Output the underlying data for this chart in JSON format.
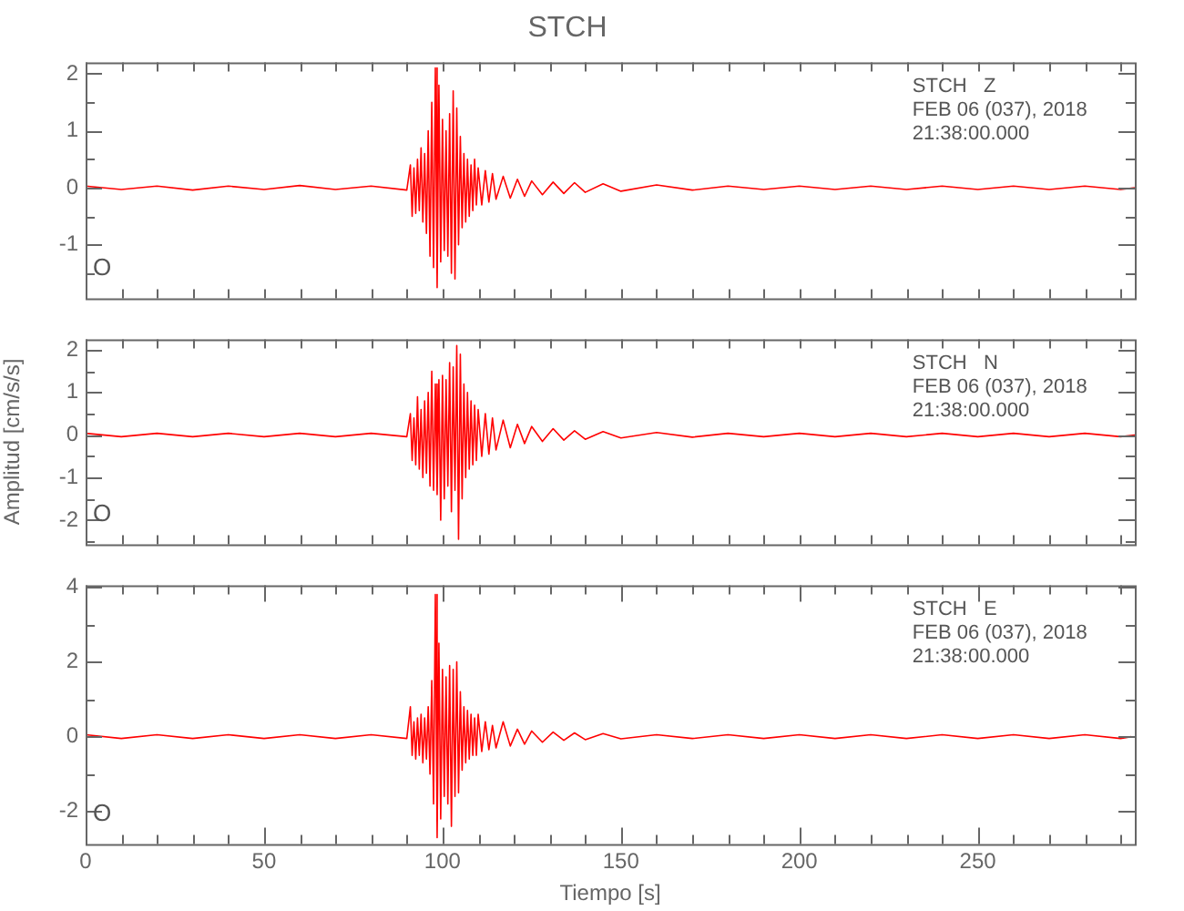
{
  "chart_data": [
    {
      "type": "line",
      "title": "STCH",
      "marker": "none",
      "grid": false,
      "tick_labels": "y",
      "x": [
        0,
        10,
        20,
        30,
        40,
        50,
        60,
        70,
        80,
        90,
        91,
        91.5,
        92,
        92.5,
        93,
        93.5,
        94,
        94.5,
        95,
        95.5,
        96,
        96.5,
        97,
        97.5,
        98,
        98.5,
        99,
        99.5,
        100,
        100.5,
        101,
        101.5,
        102,
        102.5,
        103,
        103.5,
        104,
        104.5,
        105,
        105.5,
        106,
        106.5,
        107,
        107.5,
        108,
        108.5,
        109,
        109.5,
        110,
        111,
        112,
        113,
        114,
        115,
        117,
        119,
        121,
        123,
        125,
        128,
        131,
        134,
        137,
        140,
        145,
        150,
        160,
        170,
        180,
        190,
        200,
        210,
        220,
        230,
        240,
        250,
        260,
        270,
        280,
        290,
        294
      ],
      "series": [
        {
          "color": "#ff0000",
          "values": [
            0.03,
            -0.03,
            0.03,
            -0.04,
            0.03,
            -0.03,
            0.04,
            -0.03,
            0.03,
            -0.04,
            0.4,
            -0.5,
            0.35,
            -0.45,
            0.5,
            -0.4,
            0.7,
            -0.6,
            0.6,
            -0.8,
            1.0,
            -1.2,
            1.5,
            -1.4,
            2.1,
            -1.75,
            1.8,
            -1.3,
            1.2,
            -1.1,
            1.0,
            -1.2,
            1.3,
            -1.5,
            1.7,
            -1.6,
            1.4,
            -1.0,
            0.9,
            -0.7,
            0.6,
            -0.6,
            0.5,
            -0.5,
            0.4,
            -0.4,
            0.5,
            -0.3,
            0.35,
            -0.3,
            0.3,
            -0.25,
            0.25,
            -0.2,
            0.2,
            -0.18,
            0.15,
            -0.15,
            0.12,
            -0.12,
            0.1,
            -0.1,
            0.09,
            -0.08,
            0.07,
            -0.06,
            0.05,
            -0.04,
            0.03,
            -0.03,
            0.03,
            -0.03,
            0.03,
            -0.03,
            0.03,
            -0.03,
            0.03,
            -0.03,
            0.03,
            -0.03,
            0
          ]
        }
      ],
      "xlim": [
        0,
        294
      ],
      "xticks": [
        {
          "value": 0,
          "label": null
        },
        {
          "value": 10,
          "label": null
        },
        {
          "value": 20,
          "label": null
        },
        {
          "value": 30,
          "label": null
        },
        {
          "value": 40,
          "label": null
        },
        {
          "value": 50,
          "label": null
        },
        {
          "value": 60,
          "label": null
        },
        {
          "value": 70,
          "label": null
        },
        {
          "value": 80,
          "label": null
        },
        {
          "value": 90,
          "label": null
        },
        {
          "value": 100,
          "label": null
        },
        {
          "value": 110,
          "label": null
        },
        {
          "value": 120,
          "label": null
        },
        {
          "value": 130,
          "label": null
        },
        {
          "value": 140,
          "label": null
        },
        {
          "value": 150,
          "label": null
        },
        {
          "value": 160,
          "label": null
        },
        {
          "value": 170,
          "label": null
        },
        {
          "value": 180,
          "label": null
        },
        {
          "value": 190,
          "label": null
        },
        {
          "value": 200,
          "label": null
        },
        {
          "value": 210,
          "label": null
        },
        {
          "value": 220,
          "label": null
        },
        {
          "value": 230,
          "label": null
        },
        {
          "value": 240,
          "label": null
        },
        {
          "value": 250,
          "label": null
        },
        {
          "value": 260,
          "label": null
        },
        {
          "value": 270,
          "label": null
        },
        {
          "value": 280,
          "label": null
        },
        {
          "value": 290,
          "label": null
        }
      ],
      "ylim": [
        -1.94,
        2.2
      ],
      "yticks": [
        {
          "value": -1.5,
          "label": null
        },
        -1,
        {
          "value": -0.5,
          "label": null
        },
        0,
        {
          "value": 0.5,
          "label": null
        },
        1,
        {
          "value": 1.5,
          "label": null
        },
        2
      ],
      "annotations": [
        "STCH   Z",
        "FEB 06 (037), 2018",
        "21:38:00.000",
        "O"
      ]
    },
    {
      "type": "line",
      "ylabel": "Amplitud [cm/s/s]",
      "marker": "none",
      "grid": false,
      "tick_labels": "y",
      "x": [
        0,
        10,
        20,
        30,
        40,
        50,
        60,
        70,
        80,
        90,
        91,
        91.5,
        92,
        92.5,
        93,
        93.5,
        94,
        94.5,
        95,
        95.5,
        96,
        96.5,
        97,
        97.5,
        98,
        98.5,
        99,
        99.5,
        100,
        100.5,
        101,
        101.5,
        102,
        102.5,
        103,
        103.5,
        104,
        104.5,
        105,
        105.5,
        106,
        106.5,
        107,
        107.5,
        108,
        108.5,
        109,
        109.5,
        110,
        111,
        112,
        113,
        114,
        115,
        117,
        119,
        121,
        123,
        125,
        128,
        131,
        134,
        137,
        140,
        145,
        150,
        160,
        170,
        180,
        190,
        200,
        210,
        220,
        230,
        240,
        250,
        260,
        270,
        280,
        290,
        294
      ],
      "series": [
        {
          "color": "#ff0000",
          "values": [
            0.04,
            -0.04,
            0.04,
            -0.04,
            0.04,
            -0.04,
            0.04,
            -0.04,
            0.04,
            -0.04,
            0.5,
            -0.6,
            0.4,
            -0.7,
            0.9,
            -0.8,
            0.6,
            -1.0,
            0.8,
            -0.9,
            1.0,
            -1.2,
            1.5,
            -1.3,
            1.2,
            -1.4,
            1.3,
            -2.0,
            1.4,
            -1.5,
            1.3,
            -1.2,
            1.7,
            -1.8,
            1.6,
            -1.3,
            2.1,
            -2.45,
            1.9,
            -1.5,
            1.2,
            -1.0,
            1.0,
            -0.8,
            0.8,
            -0.7,
            0.7,
            -0.6,
            0.6,
            -0.5,
            0.5,
            -0.45,
            0.4,
            -0.35,
            0.35,
            -0.3,
            0.25,
            -0.2,
            0.2,
            -0.15,
            0.15,
            -0.12,
            0.1,
            -0.1,
            0.08,
            -0.07,
            0.06,
            -0.05,
            0.04,
            -0.04,
            0.04,
            -0.04,
            0.04,
            -0.04,
            0.04,
            -0.04,
            0.04,
            -0.04,
            0.04,
            -0.04,
            0
          ]
        }
      ],
      "xlim": [
        0,
        294
      ],
      "xticks": [
        {
          "value": 0,
          "label": null
        },
        {
          "value": 10,
          "label": null
        },
        {
          "value": 20,
          "label": null
        },
        {
          "value": 30,
          "label": null
        },
        {
          "value": 40,
          "label": null
        },
        {
          "value": 50,
          "label": null
        },
        {
          "value": 60,
          "label": null
        },
        {
          "value": 70,
          "label": null
        },
        {
          "value": 80,
          "label": null
        },
        {
          "value": 90,
          "label": null
        },
        {
          "value": 100,
          "label": null
        },
        {
          "value": 110,
          "label": null
        },
        {
          "value": 120,
          "label": null
        },
        {
          "value": 130,
          "label": null
        },
        {
          "value": 140,
          "label": null
        },
        {
          "value": 150,
          "label": null
        },
        {
          "value": 160,
          "label": null
        },
        {
          "value": 170,
          "label": null
        },
        {
          "value": 180,
          "label": null
        },
        {
          "value": 190,
          "label": null
        },
        {
          "value": 200,
          "label": null
        },
        {
          "value": 210,
          "label": null
        },
        {
          "value": 220,
          "label": null
        },
        {
          "value": 230,
          "label": null
        },
        {
          "value": 240,
          "label": null
        },
        {
          "value": 250,
          "label": null
        },
        {
          "value": 260,
          "label": null
        },
        {
          "value": 270,
          "label": null
        },
        {
          "value": 280,
          "label": null
        },
        {
          "value": 290,
          "label": null
        }
      ],
      "ylim": [
        -2.57,
        2.25
      ],
      "yticks": [
        {
          "value": -2.5,
          "label": null
        },
        -2,
        {
          "value": -1.5,
          "label": null
        },
        -1,
        {
          "value": -0.5,
          "label": null
        },
        0,
        {
          "value": 0.5,
          "label": null
        },
        1,
        {
          "value": 1.5,
          "label": null
        },
        2
      ],
      "annotations": [
        "STCH   N",
        "FEB 06 (037), 2018",
        "21:38:00.000",
        "O"
      ]
    },
    {
      "type": "line",
      "xlabel": "Tiempo [s]",
      "marker": "none",
      "grid": false,
      "x": [
        0,
        10,
        20,
        30,
        40,
        50,
        60,
        70,
        80,
        90,
        91,
        91.5,
        92,
        92.5,
        93,
        93.5,
        94,
        94.5,
        95,
        95.5,
        96,
        96.5,
        97,
        97.5,
        98,
        98.5,
        99,
        99.5,
        100,
        100.5,
        101,
        101.5,
        102,
        102.5,
        103,
        103.5,
        104,
        104.5,
        105,
        105.5,
        106,
        106.5,
        107,
        107.5,
        108,
        108.5,
        109,
        109.5,
        110,
        111,
        112,
        113,
        114,
        115,
        117,
        119,
        121,
        123,
        125,
        128,
        131,
        134,
        137,
        140,
        145,
        150,
        160,
        170,
        180,
        190,
        200,
        210,
        220,
        230,
        240,
        250,
        260,
        270,
        280,
        290,
        293
      ],
      "series": [
        {
          "color": "#ff0000",
          "values": [
            0.05,
            -0.05,
            0.05,
            -0.05,
            0.05,
            -0.05,
            0.05,
            -0.05,
            0.05,
            -0.05,
            0.8,
            -0.5,
            0.4,
            -0.6,
            0.5,
            -0.5,
            0.6,
            -0.7,
            0.5,
            -0.6,
            0.8,
            -1.0,
            1.5,
            -1.8,
            3.8,
            -2.7,
            2.5,
            -2.2,
            1.8,
            -1.6,
            1.6,
            -1.8,
            1.9,
            -2.4,
            1.8,
            -1.6,
            2.0,
            -1.5,
            1.2,
            -0.9,
            0.8,
            -0.7,
            0.7,
            -0.6,
            0.6,
            -0.5,
            0.5,
            -0.5,
            0.6,
            -0.4,
            0.4,
            -0.35,
            0.3,
            -0.3,
            0.4,
            -0.25,
            0.2,
            -0.2,
            0.15,
            -0.15,
            0.12,
            -0.1,
            0.1,
            -0.08,
            0.08,
            -0.06,
            0.05,
            -0.05,
            0.05,
            -0.05,
            0.05,
            -0.05,
            0.05,
            -0.05,
            0.05,
            -0.05,
            0.05,
            -0.05,
            0.05,
            -0.05,
            0
          ]
        }
      ],
      "xlim": [
        0,
        294
      ],
      "xticks": [
        0,
        {
          "value": 10,
          "label": null
        },
        {
          "value": 20,
          "label": null
        },
        {
          "value": 30,
          "label": null
        },
        {
          "value": 40,
          "label": null
        },
        50,
        {
          "value": 60,
          "label": null
        },
        {
          "value": 70,
          "label": null
        },
        {
          "value": 80,
          "label": null
        },
        {
          "value": 90,
          "label": null
        },
        100,
        {
          "value": 110,
          "label": null
        },
        {
          "value": 120,
          "label": null
        },
        {
          "value": 130,
          "label": null
        },
        {
          "value": 140,
          "label": null
        },
        150,
        {
          "value": 160,
          "label": null
        },
        {
          "value": 170,
          "label": null
        },
        {
          "value": 180,
          "label": null
        },
        {
          "value": 190,
          "label": null
        },
        200,
        {
          "value": 210,
          "label": null
        },
        {
          "value": 220,
          "label": null
        },
        {
          "value": 230,
          "label": null
        },
        {
          "value": 240,
          "label": null
        },
        250,
        {
          "value": 260,
          "label": null
        },
        {
          "value": 270,
          "label": null
        },
        {
          "value": 280,
          "label": null
        },
        {
          "value": 290,
          "label": null
        }
      ],
      "ylim": [
        -2.87,
        4.05
      ],
      "yticks": [
        -2,
        {
          "value": -1,
          "label": null
        },
        0,
        {
          "value": 1,
          "label": null
        },
        2,
        {
          "value": 3,
          "label": null
        },
        4
      ],
      "annotations": [
        "STCH   E",
        "FEB 06 (037), 2018",
        "21:38:00.000",
        "O"
      ]
    }
  ]
}
